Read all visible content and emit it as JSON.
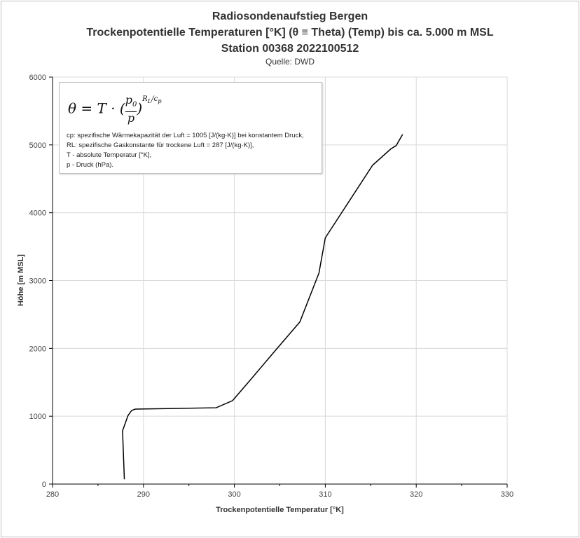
{
  "chart_data": {
    "type": "line",
    "title": [
      "Radiosondenaufstieg Bergen",
      "Trockenpotentielle Temperaturen [°K] (θ ≡ Theta) (Temp) bis ca. 5.000 m MSL",
      "Station 00368 2022100512"
    ],
    "subtitle": "Quelle: DWD",
    "xlabel": "Trockenpotentielle Temperatur [°K]",
    "ylabel": "Höhe [m MSL]",
    "xlim": [
      280,
      330
    ],
    "ylim": [
      0,
      6000
    ],
    "xticks": [
      280,
      290,
      300,
      310,
      320,
      330
    ],
    "yticks": [
      0,
      1000,
      2000,
      3000,
      4000,
      5000,
      6000
    ],
    "grid": true,
    "series": [
      {
        "name": "Theta",
        "x": [
          287.9,
          287.7,
          288.3,
          288.7,
          289.1,
          298.0,
          299.8,
          301.6,
          304.7,
          307.2,
          309.3,
          310.0,
          315.2,
          317.2,
          317.8,
          318.5
        ],
        "y": [
          70,
          785,
          1010,
          1085,
          1105,
          1125,
          1230,
          1510,
          2000,
          2390,
          3110,
          3630,
          4700,
          4940,
          4990,
          5155
        ]
      }
    ],
    "color": "#000000"
  },
  "legend": {
    "formula": "θ = T · (p0/p)^(RL/cp)",
    "lines": [
      "cp: spezifische Wärmekapazität der Luft = 1005 [J/(kg·K)] bei konstantem Druck,",
      "RL: spezifische Gaskonstante für trockene Luft = 287 [J/(kg·K)],",
      "T - absolute Temperatur [°K],",
      "p - Druck (hPa)."
    ]
  }
}
